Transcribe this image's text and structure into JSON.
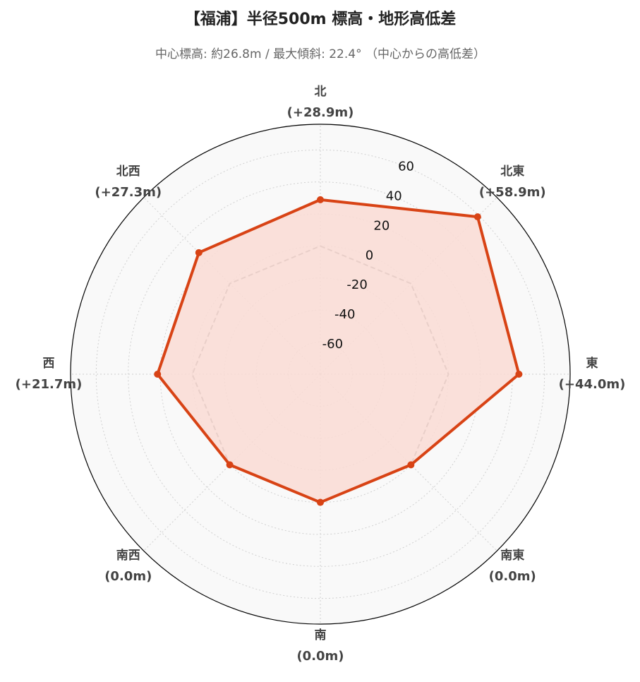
{
  "chart_data": {
    "type": "radar",
    "title": "【福浦】半径500m 標高・地形高低差",
    "subtitle": "中心標高: 約26.8m / 最大傾斜: 22.4° （中心からの高低差）",
    "categories": [
      "北",
      "北東",
      "東",
      "南東",
      "南",
      "南西",
      "西",
      "北西"
    ],
    "series": [
      {
        "color": "#d84315",
        "fill": "#fadcd5",
        "values": [
          28.9,
          58.9,
          44.0,
          0.0,
          0.0,
          0.0,
          21.7,
          27.3
        ],
        "value_labels": [
          "(+28.9m)",
          "(+58.9m)",
          "(+44.0m)",
          "(0.0m)",
          "(0.0m)",
          "(0.0m)",
          "(+21.7m)",
          "(+27.3m)"
        ]
      }
    ],
    "baseline": 0,
    "ylim": [
      -80,
      76
    ],
    "yticks": [
      -60,
      -40,
      -20,
      0,
      20,
      40,
      60
    ],
    "grid": true
  }
}
